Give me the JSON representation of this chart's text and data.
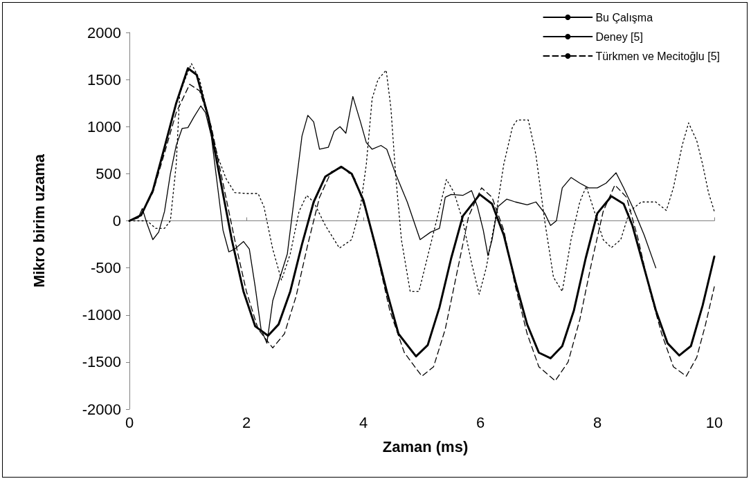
{
  "chart_data": {
    "type": "line",
    "xlabel": "Zaman (ms)",
    "ylabel": "Mikro birim uzama",
    "xlim": [
      0,
      10
    ],
    "xticks": [
      0,
      2,
      4,
      6,
      8,
      10
    ],
    "ylim": [
      -2000,
      2000
    ],
    "yticks": [
      -2000,
      -1500,
      -1000,
      -500,
      0,
      500,
      1000,
      1500,
      2000
    ],
    "legend": "top right",
    "marker": "none",
    "series": [
      {
        "name": "Bu Çalışma",
        "color": "#000000",
        "line_style": "solid",
        "x": [
          0,
          0.2,
          0.4,
          0.6,
          0.8,
          1.0,
          1.15,
          1.35,
          1.55,
          1.75,
          1.95,
          2.15,
          2.37,
          2.55,
          2.75,
          2.95,
          3.15,
          3.35,
          3.62,
          3.8,
          4.0,
          4.2,
          4.4,
          4.6,
          4.9,
          5.1,
          5.3,
          5.5,
          5.7,
          5.99,
          6.2,
          6.4,
          6.6,
          6.8,
          7.0,
          7.2,
          7.4,
          7.6,
          7.8,
          8.0,
          8.24,
          8.45,
          8.6,
          8.8,
          9.0,
          9.2,
          9.4,
          9.6,
          9.8,
          10
        ],
        "values": [
          0,
          60,
          320,
          780,
          1250,
          1620,
          1550,
          1100,
          450,
          -200,
          -750,
          -1120,
          -1220,
          -1100,
          -750,
          -250,
          200,
          470,
          575,
          500,
          220,
          -250,
          -750,
          -1200,
          -1440,
          -1320,
          -920,
          -400,
          50,
          280,
          180,
          -150,
          -650,
          -1100,
          -1400,
          -1460,
          -1330,
          -950,
          -400,
          80,
          260,
          180,
          -50,
          -500,
          -950,
          -1300,
          -1430,
          -1330,
          -900,
          -380
        ]
      },
      {
        "name": "Deney [5]",
        "color": "#000000",
        "line_style": "solid",
        "x": [
          0,
          0.15,
          0.22,
          0.3,
          0.4,
          0.5,
          0.6,
          0.7,
          0.8,
          0.9,
          1.0,
          1.1,
          1.22,
          1.3,
          1.4,
          1.5,
          1.6,
          1.7,
          1.8,
          1.95,
          2.05,
          2.15,
          2.25,
          2.35,
          2.45,
          2.55,
          2.7,
          2.85,
          2.95,
          3.05,
          3.15,
          3.25,
          3.4,
          3.5,
          3.6,
          3.7,
          3.82,
          3.95,
          4.05,
          4.15,
          4.3,
          4.4,
          4.55,
          4.75,
          4.97,
          5.15,
          5.3,
          5.4,
          5.5,
          5.7,
          5.85,
          5.95,
          6.05,
          6.13,
          6.2,
          6.3,
          6.45,
          6.6,
          6.8,
          6.95,
          7.1,
          7.2,
          7.3,
          7.4,
          7.55,
          7.7,
          7.85,
          8.0,
          8.15,
          8.32,
          8.45,
          8.6,
          8.8,
          9.0
        ],
        "values": [
          0,
          30,
          130,
          -30,
          -200,
          -120,
          100,
          500,
          800,
          980,
          990,
          1100,
          1220,
          1150,
          900,
          400,
          -100,
          -330,
          -300,
          -220,
          -300,
          -700,
          -1150,
          -1300,
          -850,
          -650,
          -350,
          400,
          900,
          1120,
          1050,
          760,
          780,
          950,
          1000,
          930,
          1320,
          1050,
          830,
          760,
          800,
          760,
          500,
          200,
          -200,
          -120,
          -80,
          250,
          280,
          270,
          320,
          150,
          -100,
          -370,
          -200,
          150,
          230,
          200,
          170,
          200,
          80,
          -50,
          0,
          350,
          460,
          400,
          350,
          350,
          400,
          510,
          350,
          150,
          -150,
          -500
        ]
      },
      {
        "color": "#000000",
        "line_style": "dotted",
        "x": [
          0,
          0.3,
          0.45,
          0.6,
          0.7,
          0.8,
          0.86,
          0.95,
          1.06,
          1.2,
          1.35,
          1.5,
          1.65,
          1.8,
          2.0,
          2.2,
          2.3,
          2.45,
          2.6,
          2.75,
          2.9,
          3.03,
          3.15,
          3.35,
          3.59,
          3.8,
          3.95,
          4.05,
          4.15,
          4.25,
          4.39,
          4.47,
          4.55,
          4.65,
          4.8,
          4.95,
          5.05,
          5.25,
          5.42,
          5.55,
          5.7,
          5.85,
          5.98,
          6.1,
          6.25,
          6.4,
          6.55,
          6.63,
          6.82,
          6.95,
          7.1,
          7.25,
          7.4,
          7.55,
          7.7,
          7.81,
          7.95,
          8.1,
          8.24,
          8.4,
          8.55,
          8.75,
          9.0,
          9.18,
          9.3,
          9.45,
          9.56,
          9.7,
          9.8,
          9.9,
          10
        ],
        "values": [
          0,
          0,
          -80,
          -80,
          0,
          600,
          1350,
          1500,
          1670,
          1500,
          1100,
          700,
          450,
          300,
          290,
          290,
          150,
          -300,
          -630,
          -350,
          100,
          270,
          200,
          -50,
          -290,
          -200,
          150,
          600,
          1300,
          1500,
          1600,
          1200,
          500,
          -200,
          -750,
          -750,
          -500,
          0,
          440,
          300,
          0,
          -450,
          -780,
          -500,
          0,
          600,
          1000,
          1070,
          1070,
          700,
          0,
          -600,
          -750,
          -200,
          200,
          365,
          100,
          -200,
          -285,
          -200,
          100,
          200,
          200,
          110,
          350,
          800,
          1040,
          850,
          600,
          300,
          100
        ]
      },
      {
        "name": "Türkmen ve Mecitoğlu [5]",
        "color": "#000000",
        "line_style": "dashed",
        "x": [
          0,
          0.2,
          0.4,
          0.6,
          0.8,
          1.03,
          1.2,
          1.4,
          1.6,
          1.8,
          2.0,
          2.2,
          2.45,
          2.65,
          2.85,
          3.05,
          3.25,
          3.45,
          3.65,
          3.85,
          4.05,
          4.25,
          4.45,
          4.7,
          5.0,
          5.2,
          5.4,
          5.6,
          5.8,
          6.02,
          6.2,
          6.4,
          6.6,
          6.8,
          7.0,
          7.28,
          7.5,
          7.7,
          7.9,
          8.1,
          8.3,
          8.5,
          8.7,
          8.9,
          9.1,
          9.3,
          9.52,
          9.7,
          9.85,
          10
        ],
        "values": [
          0,
          60,
          300,
          720,
          1150,
          1450,
          1380,
          1000,
          400,
          -200,
          -750,
          -1150,
          -1350,
          -1200,
          -800,
          -250,
          250,
          520,
          570,
          450,
          100,
          -400,
          -950,
          -1400,
          -1650,
          -1550,
          -1150,
          -550,
          50,
          350,
          250,
          -100,
          -700,
          -1200,
          -1550,
          -1700,
          -1500,
          -1050,
          -450,
          100,
          380,
          250,
          -200,
          -750,
          -1200,
          -1550,
          -1650,
          -1450,
          -1100,
          -700
        ]
      }
    ]
  }
}
